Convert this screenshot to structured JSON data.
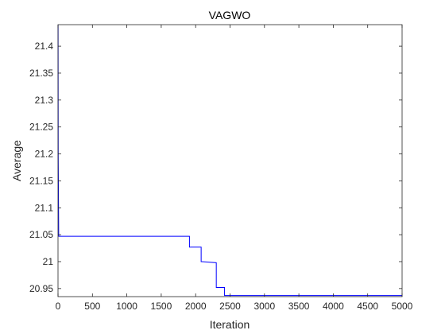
{
  "chart_data": {
    "type": "line",
    "title": "VAGWO",
    "xlabel": "Iteration",
    "ylabel": "Average",
    "xlim": [
      0,
      5000
    ],
    "ylim": [
      20.935,
      21.44
    ],
    "xticks": [
      0,
      500,
      1000,
      1500,
      2000,
      2500,
      3000,
      3500,
      4000,
      4500,
      5000
    ],
    "yticks": [
      20.95,
      21,
      21.05,
      21.1,
      21.15,
      21.2,
      21.25,
      21.3,
      21.35,
      21.4
    ],
    "ytick_labels": [
      "20.95",
      "21",
      "21.05",
      "21.1",
      "21.15",
      "21.2",
      "21.25",
      "21.3",
      "21.35",
      "21.4"
    ],
    "grid": false,
    "line_color": "#0000ff",
    "series": [
      {
        "x": [
          1,
          3,
          10,
          10,
          1910,
          1910,
          2080,
          2080,
          2300,
          2300,
          2420,
          2420,
          5000
        ],
        "y": [
          21.44,
          21.2,
          21.05,
          21.047,
          21.047,
          21.027,
          21.027,
          21.0,
          20.998,
          20.952,
          20.952,
          20.937,
          20.937
        ]
      }
    ]
  }
}
